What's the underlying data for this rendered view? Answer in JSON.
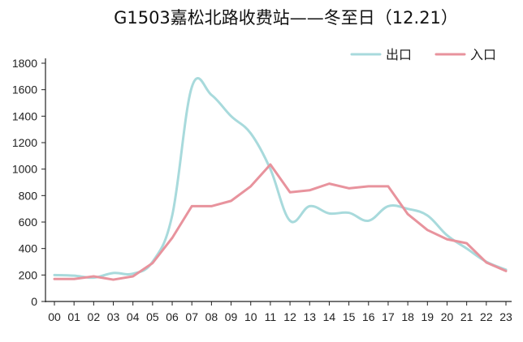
{
  "chart_data": {
    "type": "line",
    "title": "G1503嘉松北路收费站——冬至日（12.21）",
    "xlabel": "",
    "ylabel": "",
    "categories": [
      "00",
      "01",
      "02",
      "03",
      "04",
      "05",
      "06",
      "07",
      "08",
      "09",
      "10",
      "11",
      "12",
      "13",
      "14",
      "15",
      "16",
      "17",
      "18",
      "19",
      "20",
      "21",
      "22",
      "23"
    ],
    "y_ticks": [
      "0",
      "200",
      "400",
      "600",
      "800",
      "1000",
      "1200",
      "1400",
      "1600",
      "1800"
    ],
    "ylim": [
      0,
      1800
    ],
    "grid": false,
    "legend_position": "top-right",
    "series": [
      {
        "name": "出口",
        "color": "#a8dadc",
        "smooth": true,
        "values": [
          200,
          195,
          180,
          215,
          210,
          300,
          650,
          1620,
          1560,
          1400,
          1270,
          1000,
          610,
          720,
          665,
          670,
          610,
          720,
          700,
          650,
          500,
          400,
          300,
          240
        ]
      },
      {
        "name": "入口",
        "color": "#e8939d",
        "smooth": false,
        "values": [
          170,
          170,
          190,
          165,
          190,
          290,
          480,
          720,
          720,
          760,
          870,
          1035,
          825,
          840,
          890,
          855,
          870,
          870,
          660,
          540,
          470,
          440,
          295,
          230
        ]
      }
    ]
  }
}
